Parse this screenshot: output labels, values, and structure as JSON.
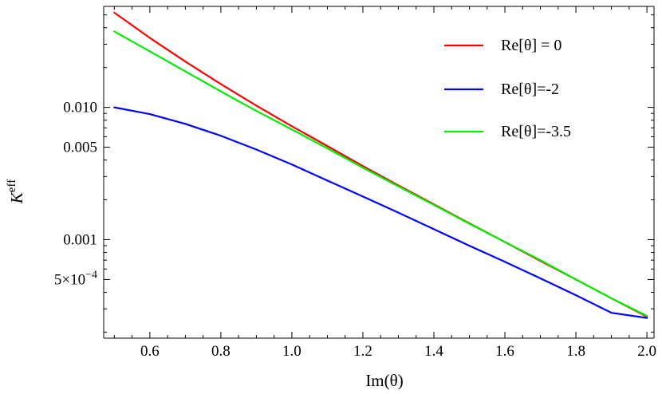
{
  "chart_data": {
    "type": "line",
    "xlabel": "Im(θ)",
    "ylabel": "K",
    "ylabel_sup": "eff",
    "xlim": [
      0.47,
      2.02
    ],
    "ylim": [
      0.00018,
      0.058
    ],
    "y_scale": "log",
    "grid": false,
    "legend_placement": "top-right",
    "x_ticks": [
      {
        "value": 0.6,
        "label": "0.6"
      },
      {
        "value": 0.8,
        "label": "0.8"
      },
      {
        "value": 1.0,
        "label": "1.0"
      },
      {
        "value": 1.2,
        "label": "1.2"
      },
      {
        "value": 1.4,
        "label": "1.4"
      },
      {
        "value": 1.6,
        "label": "1.6"
      },
      {
        "value": 1.8,
        "label": "1.8"
      },
      {
        "value": 2.0,
        "label": "2.0"
      }
    ],
    "y_ticks": [
      {
        "value": 0.01,
        "label": "0.010"
      },
      {
        "value": 0.005,
        "label": "0.005"
      },
      {
        "value": 0.001,
        "label": "0.001"
      },
      {
        "value": 0.0005,
        "label_mantissa": "5",
        "label_times": "×",
        "label_base": "10",
        "label_exp": "−4"
      }
    ],
    "x": [
      0.5,
      0.6,
      0.7,
      0.8,
      0.9,
      1.0,
      1.1,
      1.2,
      1.3,
      1.4,
      1.5,
      1.6,
      1.7,
      1.8,
      1.9,
      2.0
    ],
    "series": [
      {
        "name": "Re[θ] = 0",
        "color": "#ff0000",
        "values": [
          0.052,
          0.0335,
          0.0222,
          0.015,
          0.0103,
          0.0072,
          0.0051,
          0.0036,
          0.00257,
          0.00185,
          0.00133,
          0.00096,
          0.00069,
          0.0005,
          0.00036,
          0.000262
        ]
      },
      {
        "name": "Re[θ]=-2",
        "color": "#0000ff",
        "values": [
          0.01,
          0.0089,
          0.0075,
          0.0061,
          0.0048,
          0.0037,
          0.0028,
          0.00212,
          0.0016,
          0.0012,
          0.0009,
          0.00068,
          0.00051,
          0.00038,
          0.00028,
          0.000256
        ]
      },
      {
        "name": "Re[θ]=-3.5",
        "color": "#00ee00",
        "values": [
          0.0375,
          0.0265,
          0.0187,
          0.0132,
          0.0094,
          0.0068,
          0.0049,
          0.0035,
          0.00253,
          0.00183,
          0.00132,
          0.00096,
          0.0007,
          0.0005,
          0.00036,
          0.000265
        ]
      }
    ]
  }
}
